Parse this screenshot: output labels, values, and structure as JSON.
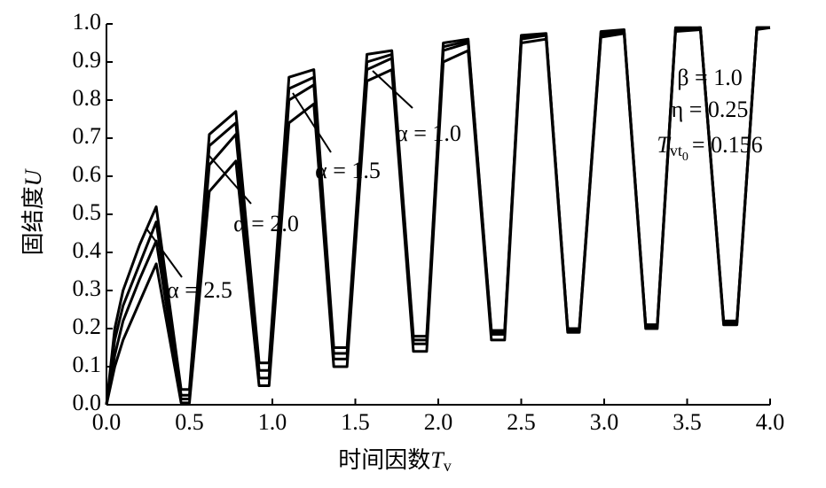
{
  "chart_data": {
    "type": "line",
    "xlabel": [
      "时间因数",
      "T",
      "v"
    ],
    "ylabel": [
      "固结度",
      "U"
    ],
    "x": [
      0,
      0.05,
      0.1,
      0.2,
      0.3,
      0.45,
      0.5,
      0.62,
      0.78,
      0.92,
      0.98,
      1.1,
      1.25,
      1.37,
      1.45,
      1.57,
      1.72,
      1.85,
      1.93,
      2.03,
      2.18,
      2.32,
      2.4,
      2.5,
      2.65,
      2.78,
      2.85,
      2.98,
      3.12,
      3.25,
      3.32,
      3.43,
      3.58,
      3.72,
      3.8,
      3.92,
      4.0
    ],
    "series": [
      {
        "name": "α = 1.0",
        "color": "#000000",
        "values": [
          0,
          0.2,
          0.3,
          0.42,
          0.52,
          0.04,
          0.04,
          0.71,
          0.77,
          0.11,
          0.11,
          0.86,
          0.88,
          0.15,
          0.15,
          0.92,
          0.93,
          0.18,
          0.18,
          0.95,
          0.96,
          0.195,
          0.195,
          0.97,
          0.975,
          0.2,
          0.2,
          0.98,
          0.985,
          0.21,
          0.21,
          0.99,
          0.99,
          0.22,
          0.22,
          0.99,
          0.99
        ]
      },
      {
        "name": "α = 1.5",
        "color": "#000000",
        "values": [
          0,
          0.17,
          0.26,
          0.37,
          0.48,
          0.025,
          0.025,
          0.68,
          0.74,
          0.09,
          0.09,
          0.83,
          0.86,
          0.135,
          0.135,
          0.9,
          0.92,
          0.17,
          0.17,
          0.94,
          0.955,
          0.19,
          0.19,
          0.965,
          0.97,
          0.2,
          0.2,
          0.975,
          0.98,
          0.21,
          0.21,
          0.985,
          0.99,
          0.215,
          0.215,
          0.99,
          0.99
        ]
      },
      {
        "name": "α = 2.0",
        "color": "#000000",
        "values": [
          0,
          0.13,
          0.22,
          0.33,
          0.43,
          0.015,
          0.015,
          0.63,
          0.71,
          0.07,
          0.07,
          0.8,
          0.84,
          0.12,
          0.12,
          0.88,
          0.91,
          0.16,
          0.16,
          0.93,
          0.95,
          0.185,
          0.185,
          0.96,
          0.97,
          0.195,
          0.195,
          0.97,
          0.98,
          0.205,
          0.205,
          0.985,
          0.99,
          0.215,
          0.215,
          0.99,
          0.99
        ]
      },
      {
        "name": "α = 2.5",
        "color": "#000000",
        "values": [
          0,
          0.1,
          0.17,
          0.27,
          0.37,
          0.005,
          0.005,
          0.56,
          0.64,
          0.05,
          0.05,
          0.74,
          0.79,
          0.1,
          0.1,
          0.85,
          0.88,
          0.14,
          0.14,
          0.9,
          0.93,
          0.17,
          0.17,
          0.95,
          0.96,
          0.19,
          0.19,
          0.965,
          0.975,
          0.2,
          0.2,
          0.98,
          0.985,
          0.21,
          0.21,
          0.985,
          0.99
        ]
      }
    ],
    "annotations": [
      "β = 1.0",
      "η = 0.25"
    ],
    "annotation_param": [
      "T",
      "vt",
      "0",
      "= 0.156"
    ],
    "xlim": [
      0,
      4.0
    ],
    "ylim": [
      0,
      1.0
    ],
    "xticks": [
      {
        "value": 0,
        "label": "0.0"
      },
      0.5,
      {
        "value": 1,
        "label": "1.0"
      },
      1.5,
      {
        "value": 2,
        "label": "2.0"
      },
      2.5,
      {
        "value": 3,
        "label": "3.0"
      },
      3.5,
      {
        "value": 4,
        "label": "4.0"
      }
    ],
    "yticks": [
      {
        "value": 0,
        "label": "0.0"
      },
      0.1,
      0.2,
      0.3,
      0.4,
      0.5,
      0.6,
      0.7,
      0.8,
      0.9,
      {
        "value": 1,
        "label": "1.0"
      }
    ]
  }
}
